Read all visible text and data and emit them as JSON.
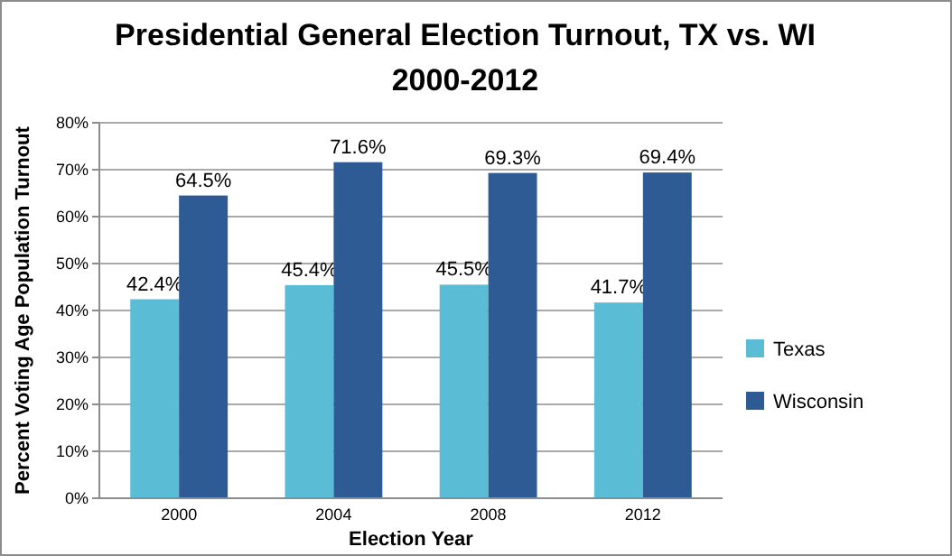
{
  "chart_data": {
    "type": "bar",
    "title": "Presidential General Election Turnout, TX vs. WI\n2000-2012",
    "xlabel": "Election Year",
    "ylabel": "Percent Voting Age Population Turnout",
    "categories": [
      "2000",
      "2004",
      "2008",
      "2012"
    ],
    "series": [
      {
        "name": "Texas",
        "color": "#5bbcd6",
        "values": [
          42.4,
          45.4,
          45.5,
          41.7
        ],
        "value_labels": [
          "42.4%",
          "45.4%",
          "45.5%",
          "41.7%"
        ]
      },
      {
        "name": "Wisconsin",
        "color": "#2f5b95",
        "values": [
          64.5,
          71.6,
          69.3,
          69.4
        ],
        "value_labels": [
          "64.5%",
          "71.6%",
          "69.3%",
          "69.4%"
        ]
      }
    ],
    "ylim": [
      0,
      80
    ],
    "yticks": [
      {
        "value": 0,
        "label": "0%"
      },
      {
        "value": 10,
        "label": "10%"
      },
      {
        "value": 20,
        "label": "20%"
      },
      {
        "value": 30,
        "label": "30%"
      },
      {
        "value": 40,
        "label": "40%"
      },
      {
        "value": 50,
        "label": "50%"
      },
      {
        "value": 60,
        "label": "60%"
      },
      {
        "value": 70,
        "label": "70%"
      },
      {
        "value": 80,
        "label": "80%"
      }
    ],
    "grid": "y",
    "legend": "right"
  }
}
